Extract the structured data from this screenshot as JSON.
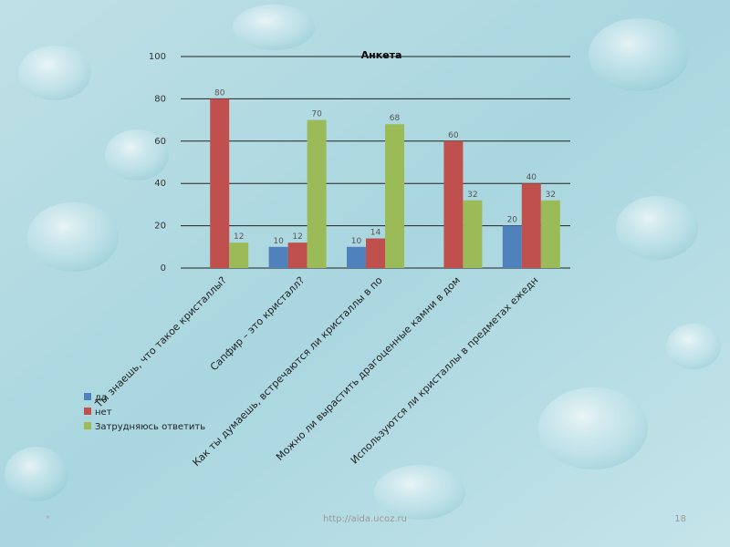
{
  "chart_data": {
    "type": "bar",
    "title": "Анкета",
    "categories": [
      "Ты знаешь, что такое кристаллы?",
      "Сапфир – это кристалл?",
      "Как ты думаешь, встречаются ли кристаллы в по",
      "Можно ли вырастить драгоценные камни в дом",
      "Используются ли кристаллы в предметах ежедн"
    ],
    "series": [
      {
        "name": "да",
        "color": "#4f81bd",
        "values": [
          null,
          10,
          10,
          null,
          20
        ]
      },
      {
        "name": "нет",
        "color": "#c0504d",
        "values": [
          80,
          12,
          14,
          60,
          40
        ]
      },
      {
        "name": "Затрудняюсь ответить",
        "color": "#9bbb59",
        "values": [
          12,
          70,
          68,
          32,
          32
        ]
      }
    ],
    "ylim": [
      0,
      100
    ],
    "yticks": [
      0,
      20,
      40,
      60,
      80,
      100
    ],
    "grid": true,
    "legend": "left"
  },
  "footer": {
    "marker": "*",
    "url": "http://aida.ucoz.ru",
    "page": "18"
  }
}
